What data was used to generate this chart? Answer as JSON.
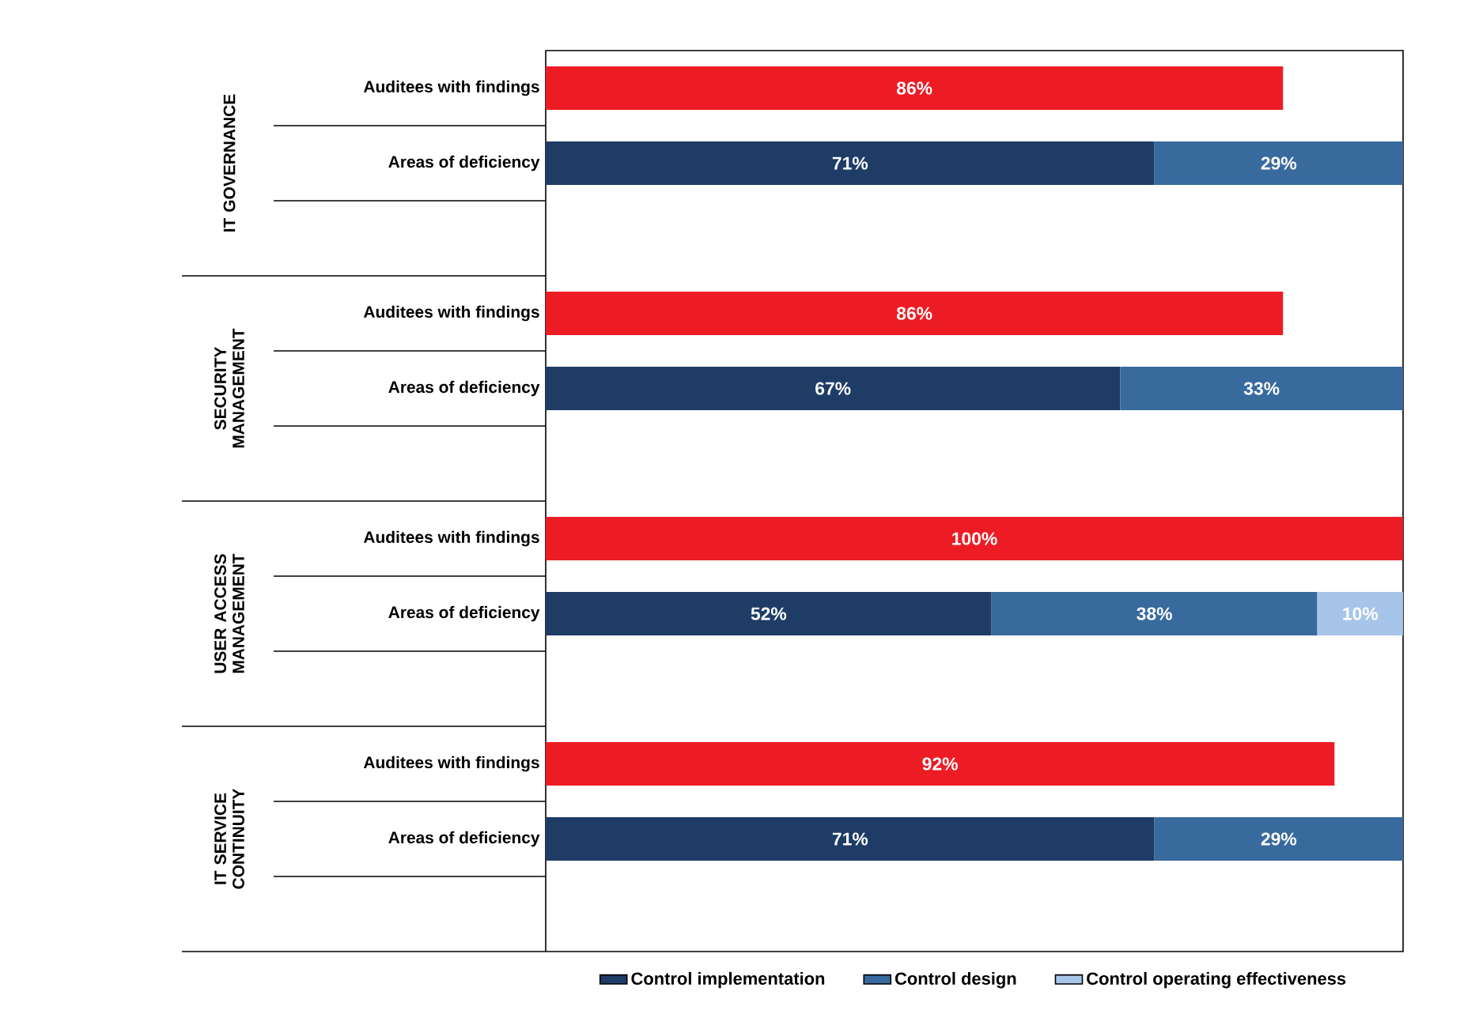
{
  "chart_data": {
    "type": "bar",
    "orientation": "horizontal",
    "stacked": true,
    "categories": [
      "Auditees with findings",
      "Areas of deficiency",
      null,
      "Auditees with findings",
      "Areas of deficiency",
      null,
      "Auditees with findings",
      "Areas of deficiency",
      null,
      "Auditees with findings",
      "Areas of deficiency",
      null
    ],
    "annotations": [
      "IT GOVERNANCE",
      "SECURITY MANAGEMENT",
      "USER ACCESS MANAGEMENT",
      "IT SERVICE CONTINUITY"
    ],
    "xlim": [
      0,
      100
    ],
    "tick_labels": "y",
    "legend": "bottom",
    "series": [
      {
        "color": "#ed1c24",
        "values": [
          86,
          null,
          null,
          86,
          null,
          null,
          100,
          null,
          null,
          92,
          null,
          null
        ],
        "value_labels": [
          "86%",
          null,
          null,
          "86%",
          null,
          null,
          "100%",
          null,
          null,
          "92%",
          null,
          null
        ]
      },
      {
        "name": "Control implementation",
        "color": "#1e3c66",
        "values": [
          null,
          71,
          null,
          null,
          67,
          null,
          null,
          52,
          null,
          null,
          71,
          null
        ],
        "value_labels": [
          null,
          "71%",
          null,
          null,
          "67%",
          null,
          null,
          "52%",
          null,
          null,
          "71%",
          null
        ]
      },
      {
        "name": "Control design",
        "color": "#386a9e",
        "values": [
          null,
          29,
          null,
          null,
          33,
          null,
          null,
          38,
          null,
          null,
          29,
          null
        ],
        "value_labels": [
          null,
          "29%",
          null,
          null,
          "33%",
          null,
          null,
          "38%",
          null,
          null,
          "29%",
          null
        ]
      },
      {
        "name": "Control operating effectiveness",
        "color": "#a7c5e8",
        "values": [
          null,
          null,
          null,
          null,
          null,
          null,
          null,
          10,
          null,
          null,
          null,
          null
        ],
        "value_labels": [
          null,
          null,
          null,
          null,
          null,
          null,
          null,
          "10%",
          null,
          null,
          null,
          null
        ]
      }
    ]
  }
}
